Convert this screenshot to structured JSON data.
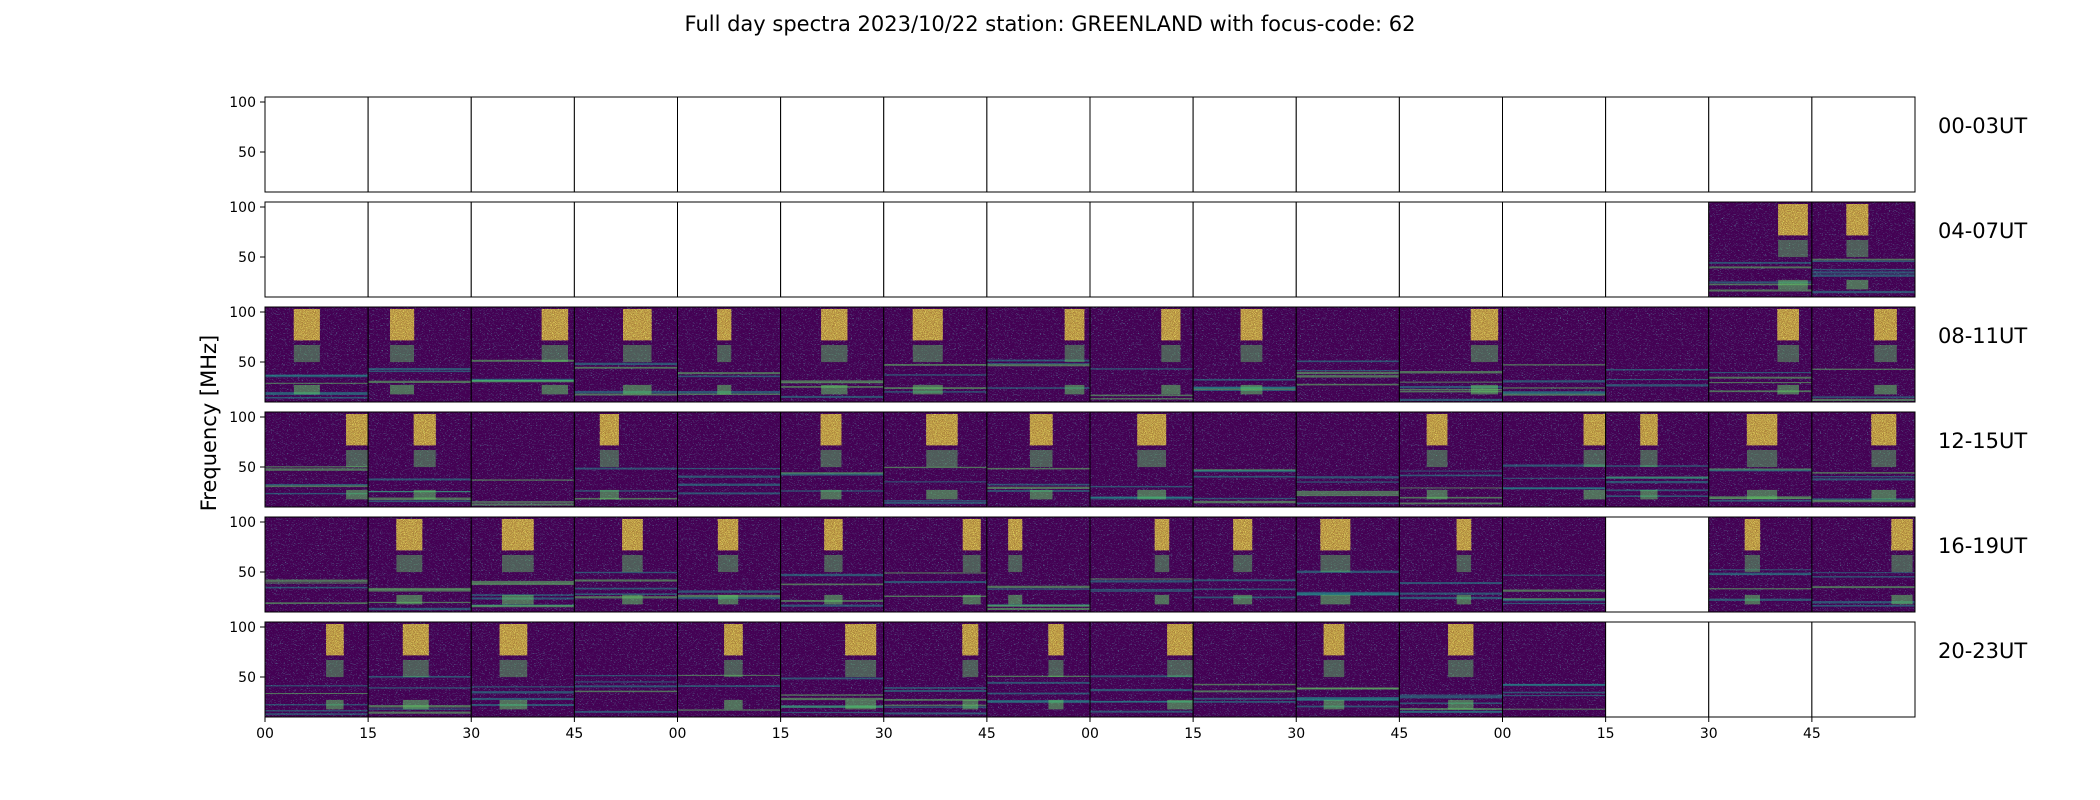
{
  "chart_data": {
    "type": "heatmap",
    "title": "Full day spectra 2023/10/22 station: GREENLAND with focus-code: 62",
    "xlabel": "",
    "ylabel": "Frequency [MHz]",
    "ylim": [
      10,
      105
    ],
    "y_ticks": [
      50,
      100
    ],
    "x_ticks": [
      "00",
      "15",
      "30",
      "45",
      "00",
      "15",
      "30",
      "45",
      "00",
      "15",
      "30",
      "45",
      "00",
      "15",
      "30",
      "45"
    ],
    "colormap": [
      "#440154",
      "#3b528b",
      "#21918c",
      "#5ec962",
      "#fde725"
    ],
    "rows": [
      {
        "label": "00-03UT",
        "panels": [
          0,
          0,
          0,
          0,
          0,
          0,
          0,
          0,
          0,
          0,
          0,
          0,
          0,
          0,
          0,
          0
        ]
      },
      {
        "label": "04-07UT",
        "panels": [
          0,
          0,
          0,
          0,
          0,
          0,
          0,
          0,
          0,
          0,
          0,
          0,
          0,
          0,
          1,
          1
        ]
      },
      {
        "label": "08-11UT",
        "panels": [
          1,
          1,
          1,
          1,
          1,
          1,
          1,
          1,
          1,
          1,
          1,
          1,
          1,
          1,
          1,
          1
        ]
      },
      {
        "label": "12-15UT",
        "panels": [
          1,
          1,
          1,
          1,
          1,
          1,
          1,
          1,
          1,
          1,
          1,
          1,
          1,
          1,
          1,
          1
        ]
      },
      {
        "label": "16-19UT",
        "panels": [
          1,
          1,
          1,
          1,
          1,
          1,
          1,
          1,
          1,
          1,
          1,
          1,
          1,
          0,
          1,
          1
        ]
      },
      {
        "label": "20-23UT",
        "panels": [
          1,
          1,
          1,
          1,
          1,
          1,
          1,
          1,
          1,
          1,
          1,
          1,
          1,
          0,
          0,
          0
        ]
      }
    ],
    "grid": false
  }
}
